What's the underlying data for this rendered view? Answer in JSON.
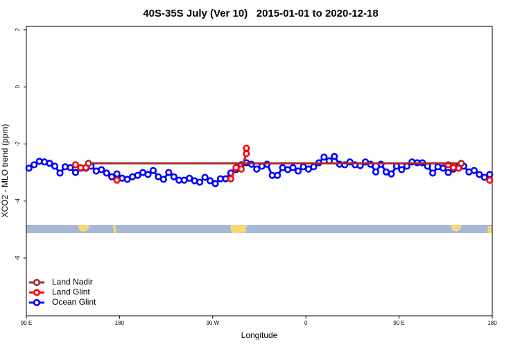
{
  "chart_data": {
    "type": "line",
    "title": "40S-35S July (Ver 10)   2015-01-01 to 2020-12-18",
    "x_label": "Longitude",
    "y_label": "XCO2 - MLO trend (ppm)",
    "xlim": [
      90,
      540
    ],
    "xticks": [
      {
        "value": 90,
        "label": "90 E"
      },
      {
        "value": 180,
        "label": "180"
      },
      {
        "value": 270,
        "label": "90 W"
      },
      {
        "value": 360,
        "label": "0"
      },
      {
        "value": 450,
        "label": "90 E"
      },
      {
        "value": 540,
        "label": "180"
      }
    ],
    "ylim": [
      -8.02,
      2.12
    ],
    "yticks": [
      -6,
      -4,
      -2,
      0,
      2
    ],
    "legend": "bottom-left",
    "series": [
      {
        "name": "Land Nadir",
        "color": "#a52a2a",
        "x": [
          150,
          510
        ],
        "values": [
          -2.68,
          -2.68
        ]
      },
      {
        "name": "Land Glint",
        "color": "#ff0000",
        "x": [
          137.5,
          142.5,
          147.5,
          null,
          177.5,
          null,
          287.5,
          292.5,
          297.5,
          302.5,
          302.5,
          null,
          497.5,
          502.5,
          507.5,
          null,
          537.5
        ],
        "values": [
          -2.73,
          -2.83,
          -2.83,
          null,
          -3.27,
          null,
          -3.22,
          -2.83,
          -2.88,
          -2.34,
          -2.15,
          null,
          -2.73,
          -2.83,
          -2.85,
          null,
          -3.27
        ]
      },
      {
        "name": "Ocean Glint",
        "color": "#0000ff",
        "x": [
          92.5,
          97.5,
          102.5,
          107.5,
          112.5,
          117.5,
          122.5,
          127.5,
          132.5,
          137.5,
          142.5,
          147.5,
          152.5,
          157.5,
          162.5,
          167.5,
          172.5,
          177.5,
          182.5,
          187.5,
          192.5,
          197.5,
          202.5,
          207.5,
          212.5,
          217.5,
          222.5,
          227.5,
          232.5,
          237.5,
          242.5,
          247.5,
          252.5,
          257.5,
          262.5,
          267.5,
          272.5,
          277.5,
          282.5,
          287.5,
          292.5,
          297.5,
          302.5,
          307.5,
          312.5,
          317.5,
          322.5,
          327.5,
          332.5,
          337.5,
          342.5,
          347.5,
          352.5,
          357.5,
          362.5,
          367.5,
          372.5,
          377.5,
          382.5,
          387.5,
          392.5,
          397.5,
          402.5,
          407.5,
          412.5,
          417.5,
          422.5,
          427.5,
          432.5,
          437.5,
          442.5,
          447.5,
          452.5,
          457.5,
          462.5,
          467.5,
          472.5,
          477.5,
          482.5,
          487.5,
          492.5,
          497.5,
          502.5,
          507.5,
          512.5,
          517.5,
          522.5,
          527.5,
          532.5,
          537.5
        ],
        "values": [
          -2.85,
          -2.73,
          -2.61,
          -2.63,
          -2.68,
          -2.78,
          -3.02,
          -2.8,
          -2.83,
          -3.0,
          -2.85,
          -2.85,
          -2.78,
          -2.95,
          -2.9,
          -3.02,
          -3.15,
          -3.05,
          -3.2,
          -3.24,
          -3.15,
          -3.1,
          -3.0,
          -3.07,
          -2.93,
          -3.15,
          -3.24,
          -3.0,
          -3.15,
          -3.27,
          -3.27,
          -3.2,
          -3.29,
          -3.34,
          -3.17,
          -3.29,
          -3.39,
          -3.22,
          -3.22,
          -3.02,
          -2.9,
          -2.73,
          -2.66,
          -2.71,
          -2.88,
          -2.78,
          -2.71,
          -3.1,
          -3.1,
          -2.83,
          -2.9,
          -2.83,
          -2.95,
          -2.8,
          -2.88,
          -2.8,
          -2.66,
          -2.46,
          -2.59,
          -2.44,
          -2.71,
          -2.73,
          -2.63,
          -2.73,
          -2.76,
          -2.63,
          -2.71,
          -2.98,
          -2.71,
          -2.98,
          -3.05,
          -2.78,
          -2.9,
          -2.78,
          -2.63,
          -2.66,
          -2.66,
          -2.78,
          -3.02,
          -2.8,
          -2.85,
          -3.0,
          -2.88,
          -2.8,
          -2.78,
          -2.98,
          -2.93,
          -3.07,
          -3.17,
          -3.07
        ]
      }
    ]
  }
}
